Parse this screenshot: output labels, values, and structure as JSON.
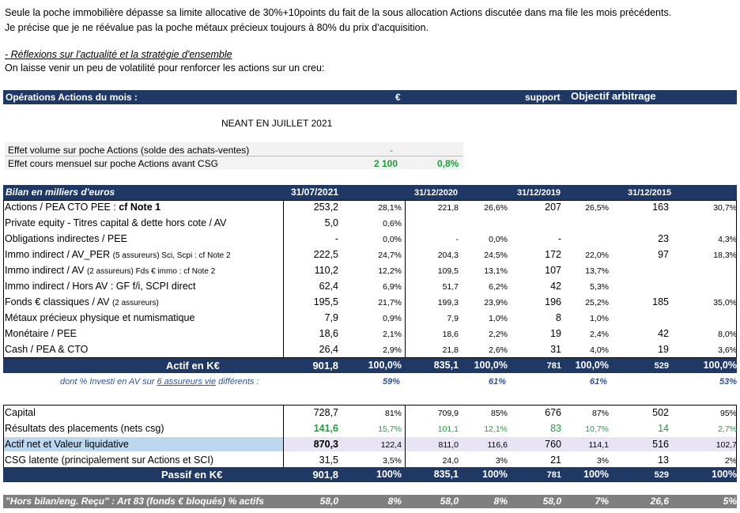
{
  "intro": {
    "line1": "Seule la poche immobilière dépasse sa limite allocative de 30%+10points du fait de la sous allocation Actions discutée dans ma file les mois précédents.",
    "line2": "Je précise que je ne réévalue pas la poche métaux précieux toujours à 80% du prix d'acquisition.",
    "section_title": "- Réflexions sur l'actualité et la stratégie d'ensemble",
    "section_text": "On laisse venir un peu de volatilité pour renforcer les actions sur un creu:"
  },
  "operations": {
    "title": "Opérations Actions du mois :",
    "col_euro": "€",
    "col_support": "support",
    "col_objectif": "Objectif arbitrage",
    "neant": "NEANT EN JUILLET 2021"
  },
  "effets": {
    "volume_label": "Effet volume sur poche Actions (solde des achats-ventes)",
    "volume_value": "-",
    "cours_label": "Effet cours mensuel sur poche Actions avant CSG",
    "cours_value": "2 100",
    "cours_pct": "0,8%"
  },
  "bilan": {
    "title": "Bilan en milliers d'euros",
    "dates": [
      "31/07/2021",
      "31/12/2020",
      "31/12/2019",
      "31/12/2015"
    ],
    "rows": [
      {
        "label": "Actions / PEA CTO PEE : ",
        "label_bold": "cf Note 1",
        "v": [
          "253,2",
          "28,1%",
          "221,8",
          "26,6%",
          "207",
          "26,5%",
          "163",
          "30,7%"
        ]
      },
      {
        "label": "Private equity - Titres capital & dette hors cote / AV",
        "label_bold": "",
        "v": [
          "5,0",
          "0,6%",
          "",
          "",
          "",
          "",
          "",
          ""
        ]
      },
      {
        "label": "Obligations indirectes / PEE",
        "label_bold": "",
        "v": [
          "-",
          "0,0%",
          "-",
          "0,0%",
          "-",
          "",
          "23",
          "4,3%"
        ]
      },
      {
        "label": "Immo indirect / AV_PER ",
        "small": "(5 assureurs) Sci, Scpi : cf Note 2",
        "label_bold": "",
        "v": [
          "222,5",
          "24,7%",
          "204,3",
          "24,5%",
          "172",
          "22,0%",
          "97",
          "18,3%"
        ]
      },
      {
        "label": "Immo indirect / AV ",
        "small": "(2 assureurs) Fds € immo : cf Note 2",
        "label_bold": "",
        "v": [
          "110,2",
          "12,2%",
          "109,5",
          "13,1%",
          "107",
          "13,7%",
          "",
          ""
        ]
      },
      {
        "label": "Immo indirect / Hors AV : GF f/i, SCPI direct",
        "label_bold": "",
        "v": [
          "62,4",
          "6,9%",
          "51,7",
          "6,2%",
          "42",
          "5,3%",
          "",
          ""
        ]
      },
      {
        "label": "Fonds € classiques / AV ",
        "small": "(2 assureurs)",
        "label_bold": "",
        "v": [
          "195,5",
          "21,7%",
          "199,3",
          "23,9%",
          "196",
          "25,2%",
          "185",
          "35,0%"
        ]
      },
      {
        "label": "Métaux précieux physique et numismatique",
        "label_bold": "",
        "v": [
          "7,9",
          "0,9%",
          "7,9",
          "1,0%",
          "8",
          "1,0%",
          "",
          ""
        ]
      },
      {
        "label": "Monétaire / PEE",
        "label_bold": "",
        "v": [
          "18,6",
          "2,1%",
          "18,6",
          "2,2%",
          "19",
          "2,4%",
          "42",
          "8,0%"
        ]
      },
      {
        "label": "Cash / PEA & CTO",
        "label_bold": "",
        "v": [
          "26,4",
          "2,9%",
          "21,8",
          "2,6%",
          "31",
          "4,0%",
          "19",
          "3,6%"
        ]
      }
    ],
    "actif": {
      "label": "Actif en K€",
      "v": [
        "901,8",
        "100,0%",
        "835,1",
        "100,0%",
        "781",
        "100,0%",
        "529",
        "100,0%"
      ]
    },
    "av_note": {
      "prefix": "dont % Investi en AV sur ",
      "underlined": "6 assureurs vie",
      "suffix": " différents :",
      "v": [
        "59%",
        "61%",
        "61%",
        "53%"
      ]
    }
  },
  "passif": {
    "rows": [
      {
        "label": "Capital",
        "v": [
          "728,7",
          "81%",
          "709,9",
          "85%",
          "676",
          "87%",
          "502",
          "95%"
        ]
      },
      {
        "label": "Résultats des placements (nets csg)",
        "v": [
          "141,6",
          "15,7%",
          "101,1",
          "12,1%",
          "83",
          "10,7%",
          "14",
          "2,7%"
        ]
      },
      {
        "label": "Actif net et ",
        "label2": "Valeur liquidative",
        "v": [
          "870,3",
          "122,4",
          "811,0",
          "116,6",
          "760",
          "114,1",
          "516",
          "102,7"
        ]
      },
      {
        "label": "CSG latente (principalement sur Actions et SCI)",
        "v": [
          "31,5",
          "3,5%",
          "24,0",
          "3%",
          "21",
          "3%",
          "13",
          "2%"
        ]
      }
    ],
    "total": {
      "label": "Passif en K€",
      "v": [
        "901,8",
        "100%",
        "835,1",
        "100%",
        "781",
        "100%",
        "529",
        "100%"
      ]
    }
  },
  "hors_bilan": {
    "label": "\"Hors bilan/eng. Reçu\" : Art 83 (fonds € bloqués) % actifs",
    "v": [
      "58,0",
      "8%",
      "58,0",
      "8%",
      "58,0",
      "7%",
      "26,6",
      "5%"
    ]
  },
  "colors": {
    "navy": "#1f3864",
    "green": "#1e9f3a",
    "gray": "#7f7f7f",
    "light_blue": "#bdd7ee",
    "lavender": "#e8e4f3"
  }
}
